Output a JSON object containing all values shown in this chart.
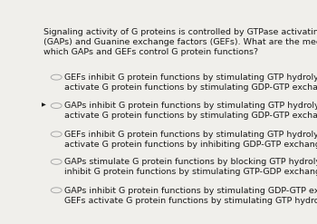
{
  "background_color": "#f0efeb",
  "header_text": "Signaling activity of G proteins is controlled by GTPase activating proteins\n(GAPs) and Guanine exchange factors (GEFs). What are the mechanisms by\nwhich GAPs and GEFs control G protein functions?",
  "options": [
    {
      "line1": "GEFs inhibit G protein functions by stimulating GTP hydrolysis; GAPs",
      "line2": "activate G protein functions by stimulating GDP-GTP exchange."
    },
    {
      "line1": "GAPs inhibit G protein functions by stimulating GTP hydrolysis; GEFs",
      "line2": "activate G protein functions by stimulating GDP-GTP exchange."
    },
    {
      "line1": "GEFs inhibit G protein functions by stimulating GTP hydrolysis; GAPs",
      "line2": "activate G protein functions by inhibiting GDP-GTP exchange."
    },
    {
      "line1": "GAPs stimulate G protein functions by blocking GTP hydrolysis; GEFs",
      "line2": "inhibit G protein functions by stimulating GTP-GDP exchange."
    },
    {
      "line1": "GAPs inhibit G protein functions by stimulating GDP-GTP exchange;",
      "line2": "GEFs activate G protein functions by stimulating GTP hydrolysis."
    }
  ],
  "header_fontsize": 6.8,
  "option_fontsize": 6.8,
  "text_color": "#1a1a1a",
  "circle_edge_color": "#aaaaaa",
  "circle_fill_color": "#f0efeb",
  "selected_index": 1,
  "arrow_marker": "▶"
}
